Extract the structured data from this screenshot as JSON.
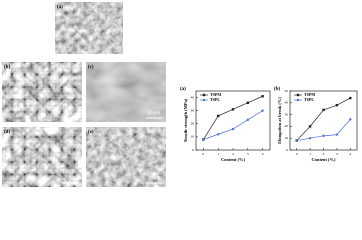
{
  "images": [
    {
      "label": "(a)"
    },
    {
      "label": "(b)",
      "scale": "20 μm"
    },
    {
      "label": "(c)",
      "scale": "20 μm"
    },
    {
      "label": "(d)",
      "scale": "20 μm"
    },
    {
      "label": "(e)",
      "scale": "20 μm"
    }
  ],
  "chart_data": [
    {
      "type": "line",
      "panel": "(a)",
      "y_label": "Tensile strength (MPa)",
      "x_label": "Content (%)",
      "x": [
        0,
        1,
        2,
        3,
        4
      ],
      "xlim": [
        -0.5,
        4.5
      ],
      "xticks": [
        0,
        1,
        2,
        3,
        4
      ],
      "ylim": [
        0,
        45
      ],
      "yticks": [
        0,
        10,
        20,
        30,
        40
      ],
      "legend": "upper left",
      "series": [
        {
          "name": "TSPM",
          "color": "#222222",
          "marker": "square",
          "values": [
            8,
            26,
            31,
            36,
            41
          ]
        },
        {
          "name": "TSPL",
          "color": "#4a6fd6",
          "marker": "circle",
          "values": [
            8,
            12,
            16,
            23,
            30
          ]
        }
      ]
    },
    {
      "type": "line",
      "panel": "(b)",
      "y_label": "Elongation at break (%)",
      "x_label": "Content (%)",
      "x": [
        0,
        1,
        2,
        3,
        4
      ],
      "xlim": [
        -0.5,
        4.5
      ],
      "xticks": [
        0,
        1,
        2,
        3,
        4
      ],
      "ylim": [
        0,
        50
      ],
      "yticks": [
        0,
        10,
        20,
        30,
        40,
        50
      ],
      "legend": "upper left",
      "series": [
        {
          "name": "TSPM",
          "color": "#222222",
          "marker": "square",
          "values": [
            8,
            20,
            34,
            38,
            44
          ]
        },
        {
          "name": "TSPL",
          "color": "#4a6fd6",
          "marker": "circle",
          "values": [
            8,
            10,
            12,
            13,
            26
          ]
        }
      ]
    }
  ]
}
